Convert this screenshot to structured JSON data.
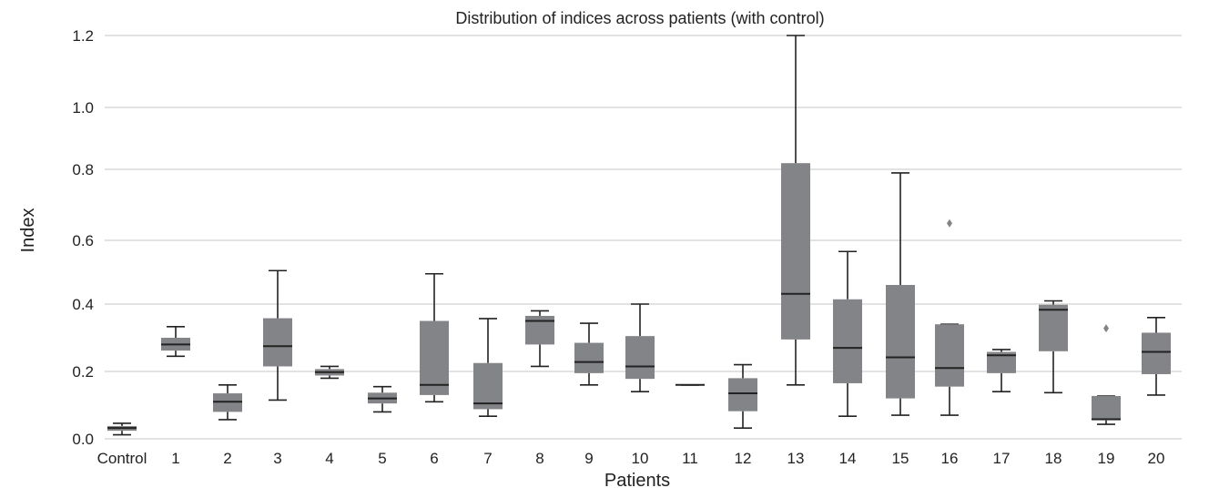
{
  "chart_data": {
    "type": "box",
    "title": "Distribution of indices across patients (with control)",
    "xlabel": "Patients",
    "ylabel": "Index",
    "ylim": [
      0,
      1.2
    ],
    "yticks": [
      "0.0",
      "0.2",
      "0.4",
      "0.6",
      "0.8",
      "1.0",
      "1.2"
    ],
    "grid": true,
    "categories": [
      "Control",
      "1",
      "2",
      "3",
      "4",
      "5",
      "6",
      "7",
      "8",
      "9",
      "10",
      "11",
      "12",
      "13",
      "14",
      "15",
      "16",
      "17",
      "18",
      "19",
      "20"
    ],
    "boxes": [
      {
        "category": "Control",
        "whislo": 0.012,
        "q1": 0.024,
        "med": 0.032,
        "q3": 0.038,
        "whishi": 0.046,
        "fliers": []
      },
      {
        "category": "1",
        "whislo": 0.245,
        "q1": 0.262,
        "med": 0.28,
        "q3": 0.3,
        "whishi": 0.333,
        "fliers": []
      },
      {
        "category": "2",
        "whislo": 0.057,
        "q1": 0.08,
        "med": 0.11,
        "q3": 0.135,
        "whishi": 0.16,
        "fliers": []
      },
      {
        "category": "3",
        "whislo": 0.115,
        "q1": 0.215,
        "med": 0.275,
        "q3": 0.358,
        "whishi": 0.505,
        "fliers": []
      },
      {
        "category": "4",
        "whislo": 0.18,
        "q1": 0.188,
        "med": 0.198,
        "q3": 0.207,
        "whishi": 0.215,
        "fliers": []
      },
      {
        "category": "5",
        "whislo": 0.08,
        "q1": 0.105,
        "med": 0.12,
        "q3": 0.137,
        "whishi": 0.155,
        "fliers": []
      },
      {
        "category": "6",
        "whislo": 0.11,
        "q1": 0.13,
        "med": 0.16,
        "q3": 0.35,
        "whishi": 0.495,
        "fliers": []
      },
      {
        "category": "7",
        "whislo": 0.067,
        "q1": 0.088,
        "med": 0.105,
        "q3": 0.225,
        "whishi": 0.357,
        "fliers": []
      },
      {
        "category": "8",
        "whislo": 0.215,
        "q1": 0.28,
        "med": 0.35,
        "q3": 0.365,
        "whishi": 0.38,
        "fliers": []
      },
      {
        "category": "9",
        "whislo": 0.16,
        "q1": 0.195,
        "med": 0.228,
        "q3": 0.285,
        "whishi": 0.343,
        "fliers": []
      },
      {
        "category": "10",
        "whislo": 0.14,
        "q1": 0.178,
        "med": 0.215,
        "q3": 0.305,
        "whishi": 0.4,
        "fliers": []
      },
      {
        "category": "11",
        "whislo": 0.16,
        "q1": 0.16,
        "med": 0.16,
        "q3": 0.16,
        "whishi": 0.16,
        "fliers": []
      },
      {
        "category": "12",
        "whislo": 0.032,
        "q1": 0.082,
        "med": 0.135,
        "q3": 0.18,
        "whishi": 0.22,
        "fliers": []
      },
      {
        "category": "13",
        "whislo": 0.16,
        "q1": 0.295,
        "med": 0.432,
        "q3": 0.82,
        "whishi": 1.2,
        "fliers": []
      },
      {
        "category": "14",
        "whislo": 0.067,
        "q1": 0.165,
        "med": 0.27,
        "q3": 0.415,
        "whishi": 0.565,
        "fliers": []
      },
      {
        "category": "15",
        "whislo": 0.07,
        "q1": 0.12,
        "med": 0.242,
        "q3": 0.46,
        "whishi": 0.79,
        "fliers": []
      },
      {
        "category": "16",
        "whislo": 0.07,
        "q1": 0.155,
        "med": 0.21,
        "q3": 0.34,
        "whishi": 0.34,
        "fliers": [
          0.648
        ]
      },
      {
        "category": "17",
        "whislo": 0.14,
        "q1": 0.195,
        "med": 0.248,
        "q3": 0.258,
        "whishi": 0.265,
        "fliers": []
      },
      {
        "category": "18",
        "whislo": 0.137,
        "q1": 0.26,
        "med": 0.383,
        "q3": 0.398,
        "whishi": 0.41,
        "fliers": []
      },
      {
        "category": "19",
        "whislo": 0.043,
        "q1": 0.055,
        "med": 0.058,
        "q3": 0.127,
        "whishi": 0.127,
        "fliers": [
          0.328
        ]
      },
      {
        "category": "20",
        "whislo": 0.13,
        "q1": 0.192,
        "med": 0.258,
        "q3": 0.315,
        "whishi": 0.36,
        "fliers": []
      }
    ]
  }
}
